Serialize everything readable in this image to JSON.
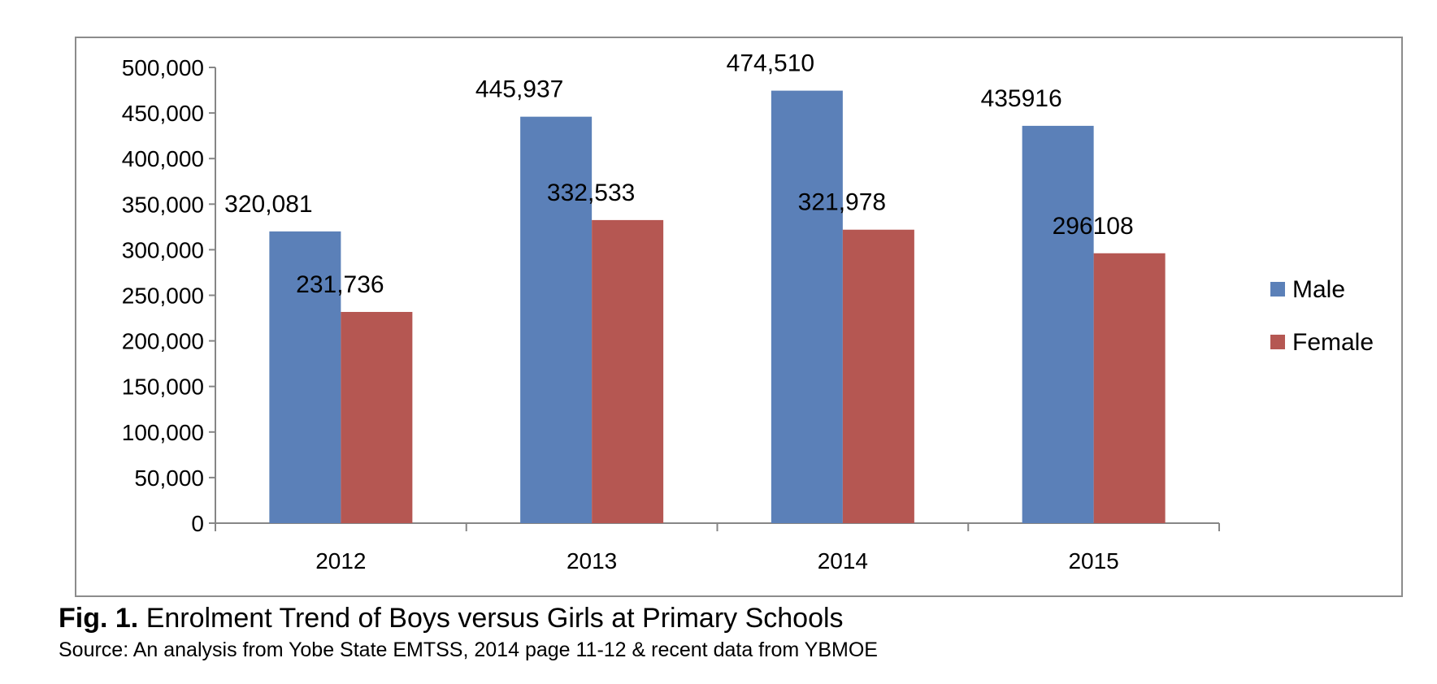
{
  "chart_data": {
    "type": "bar",
    "categories": [
      "2012",
      "2013",
      "2014",
      "2015"
    ],
    "series": [
      {
        "name": "Male",
        "color": "#5b80b8",
        "values": [
          320081,
          445937,
          474510,
          435916
        ],
        "labels": [
          "320,081",
          "445,937",
          "474,510",
          "435916"
        ]
      },
      {
        "name": "Female",
        "color": "#b55752",
        "values": [
          231736,
          332533,
          321978,
          296108
        ],
        "labels": [
          "231,736",
          "332,533",
          "321,978",
          "296108"
        ]
      }
    ],
    "ylim": [
      0,
      500000
    ],
    "yticks": [
      0,
      50000,
      100000,
      150000,
      200000,
      250000,
      300000,
      350000,
      400000,
      450000,
      500000
    ],
    "ytick_labels": [
      "0",
      "50,000",
      "100,000",
      "150,000",
      "200,000",
      "250,000",
      "300,000",
      "350,000",
      "400,000",
      "450,000",
      "500,000"
    ],
    "grid": false,
    "legend_position": "right"
  },
  "caption": {
    "prefix": "Fig. 1.",
    "title": "Enrolment Trend of Boys versus Girls at Primary Schools",
    "source": "Source: An analysis from Yobe State EMTSS, 2014 page 11-12 & recent data from YBMOE"
  }
}
